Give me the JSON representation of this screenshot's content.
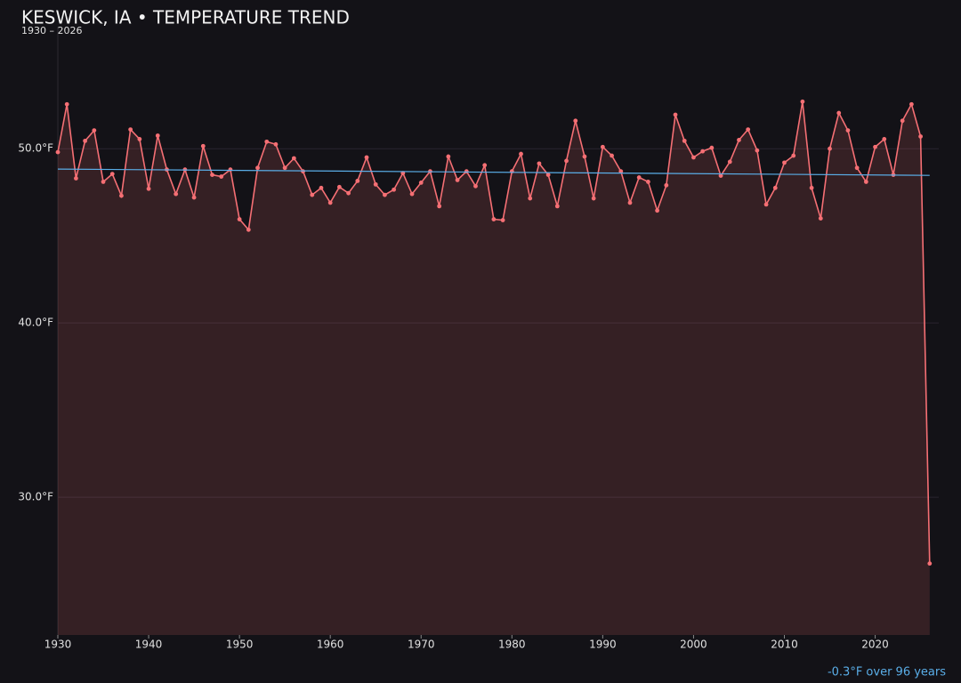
{
  "chart_data": {
    "type": "line",
    "title": "KESWICK, IA • TEMPERATURE TREND",
    "subtitle": "1930 – 2026",
    "x": [
      1930,
      1931,
      1932,
      1933,
      1934,
      1935,
      1936,
      1937,
      1938,
      1939,
      1940,
      1941,
      1942,
      1943,
      1944,
      1945,
      1946,
      1947,
      1948,
      1949,
      1950,
      1951,
      1952,
      1953,
      1954,
      1955,
      1956,
      1957,
      1958,
      1959,
      1960,
      1961,
      1962,
      1963,
      1964,
      1965,
      1966,
      1967,
      1968,
      1969,
      1970,
      1971,
      1972,
      1973,
      1974,
      1975,
      1976,
      1977,
      1978,
      1979,
      1980,
      1981,
      1982,
      1983,
      1984,
      1985,
      1986,
      1987,
      1988,
      1989,
      1990,
      1991,
      1992,
      1993,
      1994,
      1995,
      1996,
      1997,
      1998,
      1999,
      2000,
      2001,
      2002,
      2003,
      2004,
      2005,
      2006,
      2007,
      2008,
      2009,
      2010,
      2011,
      2012,
      2013,
      2014,
      2015,
      2016,
      2017,
      2018,
      2019,
      2020,
      2021,
      2022,
      2023,
      2024,
      2025,
      2026
    ],
    "series": [
      {
        "color": "#f56f74",
        "values": [
          49.8,
          52.55,
          48.3,
          50.45,
          51.05,
          48.1,
          48.55,
          47.3,
          51.1,
          50.55,
          47.7,
          50.75,
          48.8,
          47.4,
          48.8,
          47.2,
          50.15,
          48.5,
          48.4,
          48.8,
          45.95,
          45.35,
          48.9,
          50.4,
          50.25,
          48.9,
          49.45,
          48.7,
          47.35,
          47.75,
          46.9,
          47.8,
          47.45,
          48.15,
          49.5,
          47.95,
          47.35,
          47.65,
          48.6,
          47.4,
          48.05,
          48.7,
          46.7,
          49.55,
          48.2,
          48.7,
          47.85,
          49.05,
          45.95,
          45.9,
          48.7,
          49.7,
          47.15,
          49.15,
          48.5,
          46.7,
          49.3,
          51.6,
          49.55,
          47.15,
          50.1,
          49.6,
          48.7,
          46.9,
          48.35,
          48.1,
          46.45,
          47.9,
          51.95,
          50.45,
          49.5,
          49.85,
          50.05,
          48.45,
          49.25,
          50.5,
          51.1,
          49.9,
          46.8,
          47.75,
          49.2,
          49.6,
          52.7,
          47.75,
          46.0,
          50.0,
          52.05,
          51.05,
          48.9,
          48.1,
          50.1,
          50.55,
          48.5,
          51.6,
          52.55,
          50.7,
          26.2
        ]
      }
    ],
    "trend": {
      "x": [
        1930,
        2026
      ],
      "values": [
        48.83,
        48.47
      ],
      "color": "#5aaee8"
    },
    "annotation": "-0.3°F over 96 years",
    "xlim": [
      1930,
      2027
    ],
    "ylim": [
      22.1,
      57.0
    ],
    "xticks": [
      1930,
      1940,
      1950,
      1960,
      1970,
      1980,
      1990,
      2000,
      2010,
      2020
    ],
    "yticks": [
      {
        "value": 30,
        "label": "30.0°F"
      },
      {
        "value": 40,
        "label": "40.0°F"
      },
      {
        "value": 50,
        "label": "50.0°F"
      }
    ],
    "grid": true
  }
}
